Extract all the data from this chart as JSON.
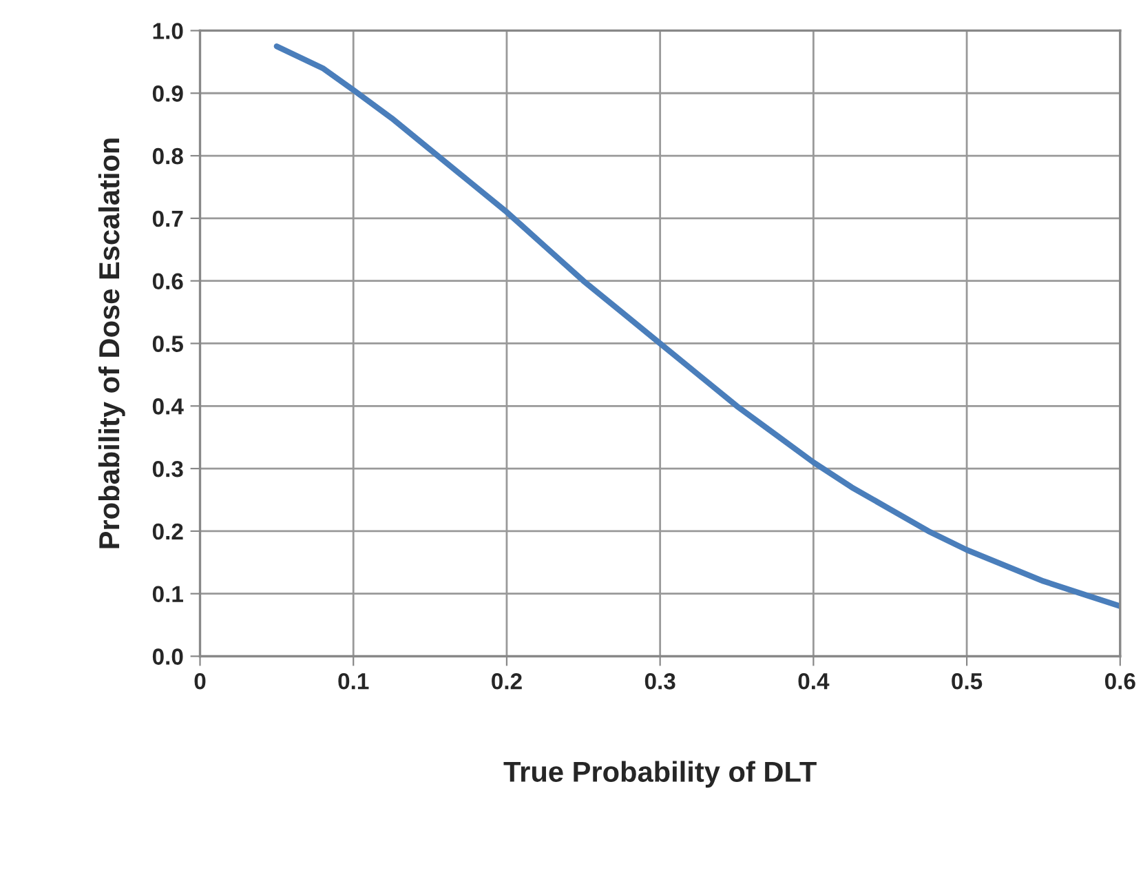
{
  "chart_data": {
    "type": "line",
    "xlabel": "True Probability of DLT",
    "ylabel": "Probability of Dose Escalation",
    "series": [
      {
        "color": "#4a7ebb",
        "x": [
          0.05,
          0.08,
          0.1,
          0.125,
          0.15,
          0.175,
          0.2,
          0.225,
          0.25,
          0.275,
          0.3,
          0.325,
          0.35,
          0.375,
          0.4,
          0.425,
          0.45,
          0.475,
          0.5,
          0.525,
          0.55,
          0.575,
          0.6
        ],
        "values": [
          0.975,
          0.94,
          0.905,
          0.86,
          0.81,
          0.76,
          0.71,
          0.655,
          0.6,
          0.55,
          0.5,
          0.45,
          0.4,
          0.355,
          0.31,
          0.27,
          0.235,
          0.2,
          0.17,
          0.145,
          0.12,
          0.1,
          0.08
        ]
      }
    ],
    "xlim": [
      0,
      0.6
    ],
    "ylim": [
      0,
      1.0
    ],
    "xticks": [
      {
        "value": 0,
        "label": "0"
      },
      0.1,
      0.2,
      0.3,
      0.4,
      0.5,
      0.6
    ],
    "yticks": [
      {
        "value": 0,
        "label": "0.0"
      },
      0.1,
      0.2,
      0.3,
      0.4,
      0.5,
      0.6,
      0.7,
      0.8,
      0.9,
      {
        "value": 1.0,
        "label": "1.0"
      }
    ],
    "grid": true,
    "line_style": "solid",
    "marker": "none"
  }
}
